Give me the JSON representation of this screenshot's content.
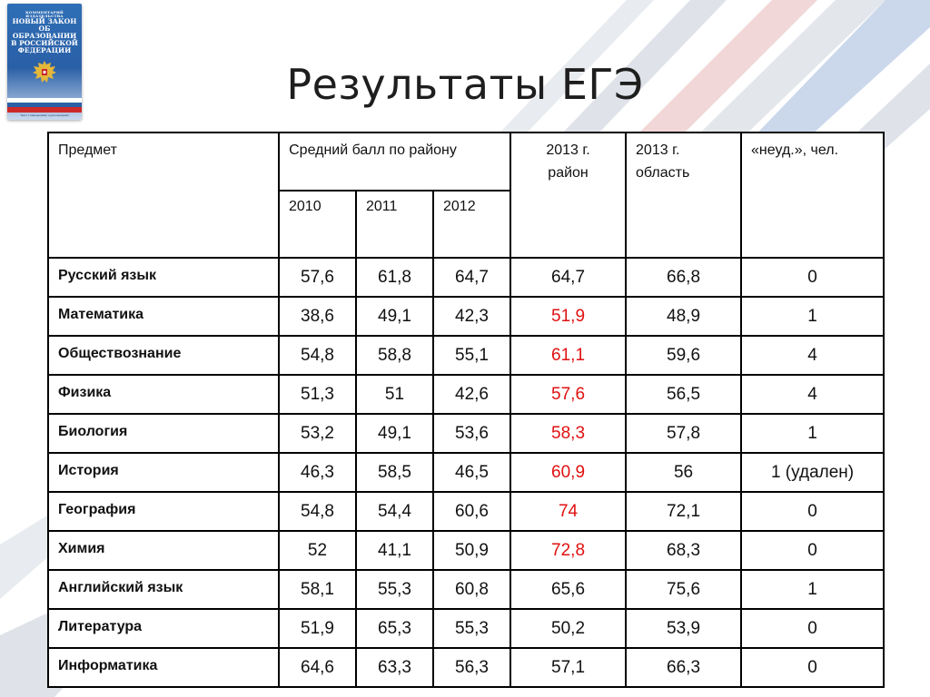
{
  "title": "Результаты ЕГЭ",
  "book": {
    "top_text": "КОММЕНТАРИЙ ИЗДАТЕЛЬСТВА",
    "title_lines": [
      "НОВЫЙ ЗАКОН",
      "ОБ ОБРАЗОВАНИИ",
      "В РОССИЙСКОЙ",
      "ФЕДЕРАЦИИ"
    ],
    "footer_text": "Текст с изменениями и дополнениями"
  },
  "table": {
    "headers": {
      "subject": "Предмет",
      "avg_score": "Средний балл по району",
      "years": [
        "2010",
        "2011",
        "2012"
      ],
      "district_2013": "2013 г. район",
      "region_2013": "2013 г. область",
      "failed": "«неуд.», чел."
    },
    "rows": [
      {
        "subject": "Русский язык",
        "y2010": "57,6",
        "y2011": "61,8",
        "y2012": "64,7",
        "district_2013": "64,7",
        "region_2013": "66,8",
        "failed": "0",
        "highlight": false
      },
      {
        "subject": "Математика",
        "y2010": "38,6",
        "y2011": "49,1",
        "y2012": "42,3",
        "district_2013": "51,9",
        "region_2013": "48,9",
        "failed": "1",
        "highlight": true
      },
      {
        "subject": "Обществознание",
        "y2010": "54,8",
        "y2011": "58,8",
        "y2012": "55,1",
        "district_2013": "61,1",
        "region_2013": "59,6",
        "failed": "4",
        "highlight": true
      },
      {
        "subject": "Физика",
        "y2010": "51,3",
        "y2011": "51",
        "y2012": "42,6",
        "district_2013": "57,6",
        "region_2013": "56,5",
        "failed": "4",
        "highlight": true
      },
      {
        "subject": "Биология",
        "y2010": "53,2",
        "y2011": "49,1",
        "y2012": "53,6",
        "district_2013": "58,3",
        "region_2013": "57,8",
        "failed": "1",
        "highlight": true
      },
      {
        "subject": "История",
        "y2010": "46,3",
        "y2011": "58,5",
        "y2012": "46,5",
        "district_2013": "60,9",
        "region_2013": "56",
        "failed": "1 (удален)",
        "highlight": true
      },
      {
        "subject": "География",
        "y2010": "54,8",
        "y2011": "54,4",
        "y2012": "60,6",
        "district_2013": "74",
        "region_2013": "72,1",
        "failed": "0",
        "highlight": true
      },
      {
        "subject": "Химия",
        "y2010": "52",
        "y2011": "41,1",
        "y2012": "50,9",
        "district_2013": "72,8",
        "region_2013": "68,3",
        "failed": "0",
        "highlight": true
      },
      {
        "subject": "Английский язык",
        "y2010": "58,1",
        "y2011": "55,3",
        "y2012": "60,8",
        "district_2013": "65,6",
        "region_2013": "75,6",
        "failed": "1",
        "highlight": false
      },
      {
        "subject": "Литература",
        "y2010": "51,9",
        "y2011": "65,3",
        "y2012": "55,3",
        "district_2013": "50,2",
        "region_2013": "53,9",
        "failed": "0",
        "highlight": false
      },
      {
        "subject": "Информатика",
        "y2010": "64,6",
        "y2011": "63,3",
        "y2012": "56,3",
        "district_2013": "57,1",
        "region_2013": "66,3",
        "failed": "0",
        "highlight": false
      }
    ]
  },
  "colors": {
    "highlight_red": "#e01010",
    "text": "#111111",
    "swoosh_gray": "#d9dde3",
    "swoosh_blue": "#a8bedd",
    "swoosh_red": "#e6b7b7"
  }
}
